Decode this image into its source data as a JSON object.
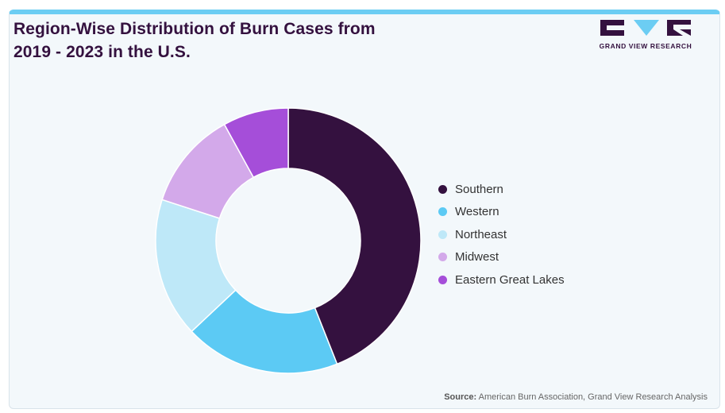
{
  "header": {
    "title": "Region-Wise Distribution of Burn Cases from\n2019 - 2023 in the U.S.",
    "logo_text": "GRAND VIEW RESEARCH"
  },
  "chart_data": {
    "type": "pie",
    "variant": "donut",
    "start_angle_deg": 0,
    "direction": "clockwise",
    "categories": [
      "Southern",
      "Western",
      "Northeast",
      "Midwest",
      "Eastern Great Lakes"
    ],
    "values": [
      44,
      19,
      17,
      12,
      8
    ],
    "colors": [
      "#34113f",
      "#5ccaf4",
      "#bee8f8",
      "#d3a9ea",
      "#a54ed9"
    ],
    "legend_position": "right"
  },
  "colors": {
    "brand_dark": "#34113f",
    "accent_blue": "#6ccdf3"
  },
  "footer": {
    "source_label": "Source:",
    "source_text": " American Burn Association, Grand View Research Analysis"
  }
}
